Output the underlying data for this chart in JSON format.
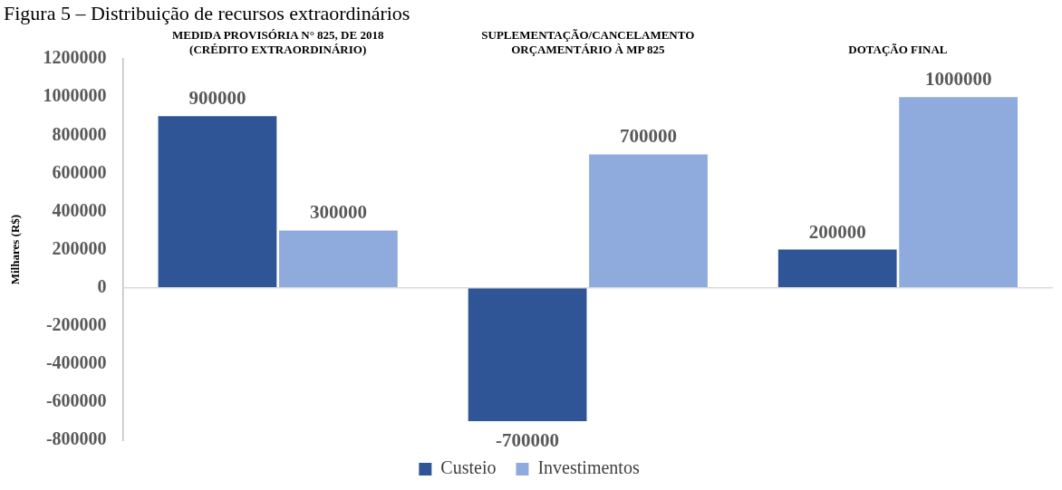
{
  "chart_data": {
    "type": "bar",
    "title": "Figura 5 – Distribuição de recursos extraordinários",
    "ylabel": "Milhares (R$)",
    "categories": [
      "MEDIDA PROVISÓRIA N° 825, DE 2018 (CRÉDITO EXTRAORDINÁRIO)",
      "SUPLEMENTAÇÃO/CANCELAMENTO ORÇAMENTÁRIO À MP 825",
      "DOTAÇÃO FINAL"
    ],
    "series": [
      {
        "name": "Custeio",
        "color": "#2f5597",
        "values": [
          900000,
          -700000,
          200000
        ]
      },
      {
        "name": "Investimentos",
        "color": "#8faadc",
        "values": [
          300000,
          700000,
          1000000
        ]
      }
    ],
    "ylim": [
      -800000,
      1200000
    ],
    "yticks": [
      -800000,
      -600000,
      -400000,
      -200000,
      0,
      200000,
      400000,
      600000,
      800000,
      1000000,
      1200000
    ],
    "ref_lines": [
      {
        "axis": "y",
        "value": 0,
        "color": "#d9d9d9"
      }
    ],
    "grid": false,
    "legend": "bottom",
    "data_labels": true
  }
}
